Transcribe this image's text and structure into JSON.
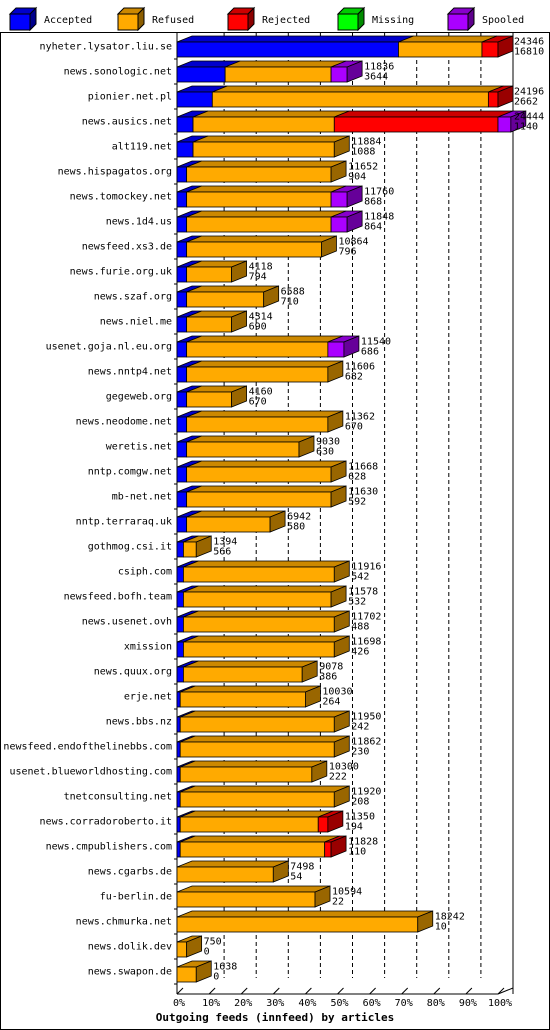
{
  "chart_data": {
    "type": "bar",
    "stacked": true,
    "orientation": "horizontal",
    "title": "Outgoing feeds (innfeed) by articles",
    "xlabel": "",
    "ylabel": "",
    "xlim": [
      0,
      100
    ],
    "x_ticks": [
      "0%",
      "10%",
      "20%",
      "30%",
      "40%",
      "50%",
      "60%",
      "70%",
      "80%",
      "90%",
      "100%"
    ],
    "grid": true,
    "legend_position": "top",
    "series": [
      {
        "name": "Accepted",
        "color": "#0000ff"
      },
      {
        "name": "Refused",
        "color": "#ffaa00"
      },
      {
        "name": "Rejected",
        "color": "#ff0000"
      },
      {
        "name": "Missing",
        "color": "#00ff00"
      },
      {
        "name": "Spooled",
        "color": "#aa00ff"
      }
    ],
    "rows": [
      {
        "name": "nyheter.lysator.liu.se",
        "offered": "24346",
        "accepted": "16810",
        "pct": [
          69,
          26,
          5,
          0,
          0
        ]
      },
      {
        "name": "news.sonologic.net",
        "offered": "11836",
        "accepted": "3644",
        "pct": [
          15,
          33,
          0,
          0,
          5
        ]
      },
      {
        "name": "pionier.net.pl",
        "offered": "24196",
        "accepted": "2662",
        "pct": [
          11,
          86,
          3,
          0,
          0
        ]
      },
      {
        "name": "news.ausics.net",
        "offered": "24444",
        "accepted": "1140",
        "pct": [
          5,
          44,
          51,
          0,
          4
        ]
      },
      {
        "name": "alt119.net",
        "offered": "11884",
        "accepted": "1088",
        "pct": [
          5,
          44,
          0,
          0,
          0
        ]
      },
      {
        "name": "news.hispagatos.org",
        "offered": "11652",
        "accepted": "904",
        "pct": [
          3,
          45,
          0,
          0,
          0
        ]
      },
      {
        "name": "news.tomockey.net",
        "offered": "11760",
        "accepted": "868",
        "pct": [
          3,
          45,
          0,
          0,
          5
        ]
      },
      {
        "name": "news.1d4.us",
        "offered": "11848",
        "accepted": "864",
        "pct": [
          3,
          45,
          0,
          0,
          5
        ]
      },
      {
        "name": "newsfeed.xs3.de",
        "offered": "10864",
        "accepted": "796",
        "pct": [
          3,
          42,
          0,
          0,
          0
        ]
      },
      {
        "name": "news.furie.org.uk",
        "offered": "4118",
        "accepted": "794",
        "pct": [
          3,
          14,
          0,
          0,
          0
        ]
      },
      {
        "name": "news.szaf.org",
        "offered": "6588",
        "accepted": "710",
        "pct": [
          3,
          24,
          0,
          0,
          0
        ]
      },
      {
        "name": "news.niel.me",
        "offered": "4314",
        "accepted": "690",
        "pct": [
          3,
          14,
          0,
          0,
          0
        ]
      },
      {
        "name": "usenet.goja.nl.eu.org",
        "offered": "11540",
        "accepted": "686",
        "pct": [
          3,
          44,
          0,
          0,
          5
        ]
      },
      {
        "name": "news.nntp4.net",
        "offered": "11606",
        "accepted": "682",
        "pct": [
          3,
          44,
          0,
          0,
          0
        ]
      },
      {
        "name": "gegeweb.org",
        "offered": "4160",
        "accepted": "670",
        "pct": [
          3,
          14,
          0,
          0,
          0
        ]
      },
      {
        "name": "news.neodome.net",
        "offered": "11362",
        "accepted": "670",
        "pct": [
          3,
          44,
          0,
          0,
          0
        ]
      },
      {
        "name": "weretis.net",
        "offered": "9030",
        "accepted": "630",
        "pct": [
          3,
          35,
          0,
          0,
          0
        ]
      },
      {
        "name": "nntp.comgw.net",
        "offered": "11668",
        "accepted": "628",
        "pct": [
          3,
          45,
          0,
          0,
          0
        ]
      },
      {
        "name": "mb-net.net",
        "offered": "11630",
        "accepted": "592",
        "pct": [
          3,
          45,
          0,
          0,
          0
        ]
      },
      {
        "name": "nntp.terraraq.uk",
        "offered": "6942",
        "accepted": "580",
        "pct": [
          3,
          26,
          0,
          0,
          0
        ]
      },
      {
        "name": "gothmog.csi.it",
        "offered": "1394",
        "accepted": "566",
        "pct": [
          2,
          4,
          0,
          0,
          0
        ]
      },
      {
        "name": "csiph.com",
        "offered": "11916",
        "accepted": "542",
        "pct": [
          2,
          47,
          0,
          0,
          0
        ]
      },
      {
        "name": "newsfeed.bofh.team",
        "offered": "11578",
        "accepted": "532",
        "pct": [
          2,
          46,
          0,
          0,
          0
        ]
      },
      {
        "name": "news.usenet.ovh",
        "offered": "11702",
        "accepted": "488",
        "pct": [
          2,
          47,
          0,
          0,
          0
        ]
      },
      {
        "name": "xmission",
        "offered": "11698",
        "accepted": "426",
        "pct": [
          2,
          47,
          0,
          0,
          0
        ]
      },
      {
        "name": "news.quux.org",
        "offered": "9078",
        "accepted": "386",
        "pct": [
          2,
          37,
          0,
          0,
          0
        ]
      },
      {
        "name": "erje.net",
        "offered": "10030",
        "accepted": "264",
        "pct": [
          1,
          39,
          0,
          0,
          0
        ]
      },
      {
        "name": "news.bbs.nz",
        "offered": "11950",
        "accepted": "242",
        "pct": [
          1,
          48,
          0,
          0,
          0
        ]
      },
      {
        "name": "newsfeed.endofthelinebbs.com",
        "offered": "11862",
        "accepted": "230",
        "pct": [
          1,
          48,
          0,
          0,
          0
        ]
      },
      {
        "name": "usenet.blueworldhosting.com",
        "offered": "10300",
        "accepted": "222",
        "pct": [
          1,
          41,
          0,
          0,
          0
        ]
      },
      {
        "name": "tnetconsulting.net",
        "offered": "11920",
        "accepted": "208",
        "pct": [
          1,
          48,
          0,
          0,
          0
        ]
      },
      {
        "name": "news.corradoroberto.it",
        "offered": "11350",
        "accepted": "194",
        "pct": [
          1,
          43,
          3,
          0,
          0
        ]
      },
      {
        "name": "news.cmpublishers.com",
        "offered": "11828",
        "accepted": "110",
        "pct": [
          1,
          45,
          2,
          0,
          0
        ]
      },
      {
        "name": "news.cgarbs.de",
        "offered": "7498",
        "accepted": "54",
        "pct": [
          0,
          30,
          0,
          0,
          0
        ]
      },
      {
        "name": "fu-berlin.de",
        "offered": "10594",
        "accepted": "22",
        "pct": [
          0,
          43,
          0,
          0,
          0
        ]
      },
      {
        "name": "news.chmurka.net",
        "offered": "18242",
        "accepted": "10",
        "pct": [
          0,
          75,
          0,
          0,
          0
        ]
      },
      {
        "name": "news.dolik.dev",
        "offered": "750",
        "accepted": "0",
        "pct": [
          0,
          3,
          0,
          0,
          0
        ]
      },
      {
        "name": "news.swapon.de",
        "offered": "1638",
        "accepted": "0",
        "pct": [
          0,
          6,
          0,
          0,
          0
        ]
      }
    ]
  }
}
